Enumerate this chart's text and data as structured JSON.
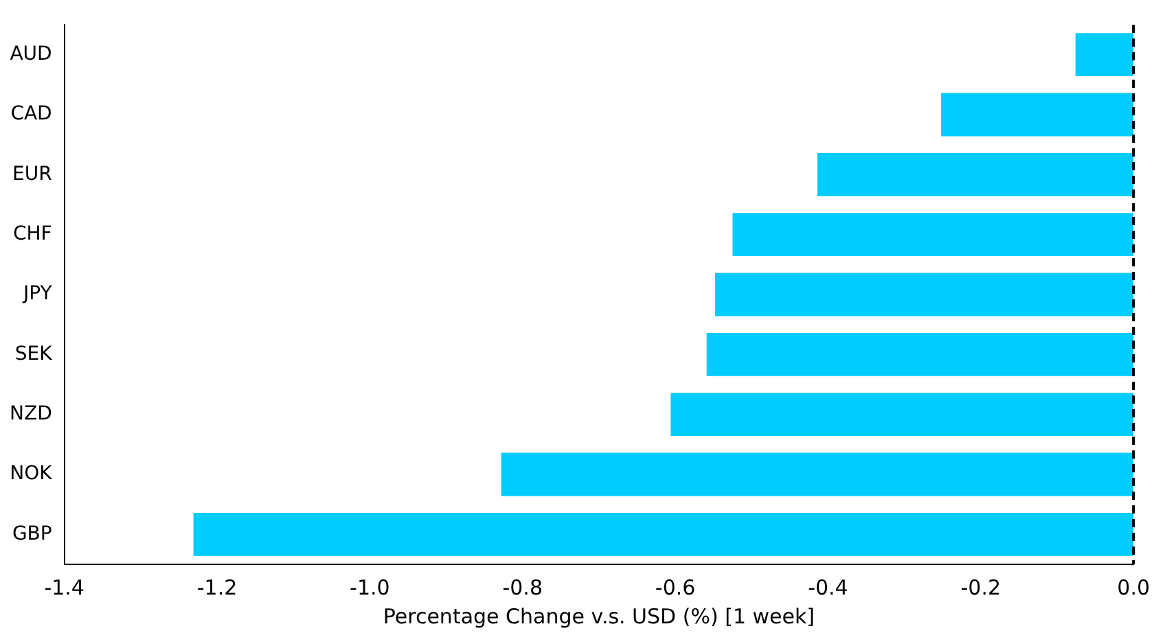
{
  "chart_data": {
    "type": "bar",
    "orientation": "horizontal",
    "xlabel": "Percentage Change v.s. USD (%) [1 week]",
    "categories": [
      "AUD",
      "CAD",
      "EUR",
      "CHF",
      "JPY",
      "SEK",
      "NZD",
      "NOK",
      "GBP"
    ],
    "values": [
      -0.076,
      -0.252,
      -0.414,
      -0.525,
      -0.548,
      -0.559,
      -0.606,
      -0.828,
      -1.231
    ],
    "color": "#00ccff",
    "xlim": [
      -1.4,
      0.0
    ],
    "xticks": [
      {
        "value": -1.4,
        "label": "-1.4"
      },
      {
        "value": -1.2,
        "label": "-1.2"
      },
      {
        "value": -1.0,
        "label": "-1.0"
      },
      {
        "value": -0.8,
        "label": "-0.8"
      },
      {
        "value": -0.6,
        "label": "-0.6"
      },
      {
        "value": -0.4,
        "label": "-0.4"
      },
      {
        "value": -0.2,
        "label": "-0.2"
      },
      {
        "value": 0,
        "label": "0.0"
      }
    ],
    "ref_lines": [
      {
        "axis": "x",
        "value": 0,
        "color": "#000000",
        "line_style": "dashed"
      }
    ],
    "grid": false,
    "legend": false
  }
}
